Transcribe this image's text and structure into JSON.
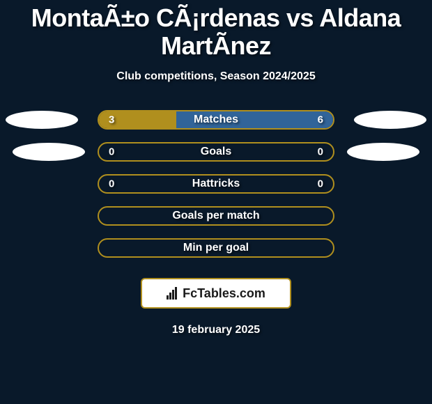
{
  "title": "MontaÃ±o CÃ¡rdenas vs Aldana MartÃ­nez",
  "subtitle": "Club competitions, Season 2024/2025",
  "date": "19 february 2025",
  "attribution": "FcTables.com",
  "colors": {
    "background": "#09192a",
    "bar_border": "#b08f1e",
    "bar_accent_left": "#b08f1e",
    "bar_accent_right": "#316499",
    "ellipse": "#ffffff",
    "text": "#ffffff"
  },
  "stats": {
    "rows": [
      {
        "label": "Matches",
        "left_value": "3",
        "right_value": "6",
        "left_pct": 33,
        "right_pct": 67,
        "left_color": "#b08f1e",
        "right_color": "#316499",
        "show_side_ellipses": true,
        "ellipse_offset": "r1"
      },
      {
        "label": "Goals",
        "left_value": "0",
        "right_value": "0",
        "left_pct": 0,
        "right_pct": 0,
        "left_color": "#b08f1e",
        "right_color": "#316499",
        "show_side_ellipses": true,
        "ellipse_offset": "r2"
      },
      {
        "label": "Hattricks",
        "left_value": "0",
        "right_value": "0",
        "left_pct": 0,
        "right_pct": 0,
        "left_color": "#b08f1e",
        "right_color": "#316499",
        "show_side_ellipses": false
      },
      {
        "label": "Goals per match",
        "left_value": "",
        "right_value": "",
        "left_pct": 0,
        "right_pct": 0,
        "left_color": "#b08f1e",
        "right_color": "#316499",
        "show_side_ellipses": false
      },
      {
        "label": "Min per goal",
        "left_value": "",
        "right_value": "",
        "left_pct": 0,
        "right_pct": 0,
        "left_color": "#b08f1e",
        "right_color": "#316499",
        "show_side_ellipses": false
      }
    ]
  }
}
